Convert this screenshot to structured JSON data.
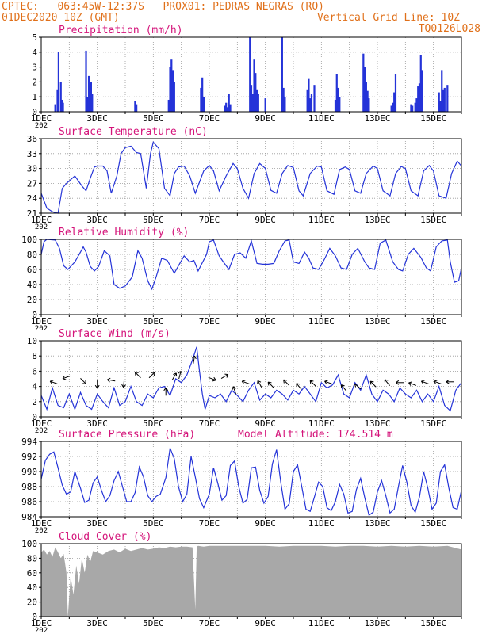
{
  "header": {
    "line1_left": "CPTEC:   063:45W-12:37S   PROX01: PEDRAS NEGRAS (RO)",
    "line2_left": "01DEC2020 10Z (GMT)",
    "line2_right": "Vertical Grid Line: 10Z",
    "line3_right": "TQ0126L028"
  },
  "colors": {
    "line": "#2433d8",
    "bars": "#2433d8",
    "cloud": "#a8a8a8",
    "header": "#e0701a",
    "title": "#d4147a"
  },
  "x_axis": {
    "tick_labels": [
      "1DEC",
      "3DEC",
      "5DEC",
      "7DEC",
      "9DEC",
      "11DEC",
      "13DEC",
      "15DEC"
    ],
    "year_fragment": "202",
    "range_days": [
      1,
      16
    ]
  },
  "chart_data": [
    {
      "type": "bar",
      "title": "Precipitation (mm/h)",
      "ylim": [
        0,
        5
      ],
      "yticks": [
        0,
        1,
        2,
        3,
        4,
        5
      ],
      "x": [
        1.5,
        1.58,
        1.62,
        1.7,
        1.75,
        1.78,
        2.6,
        2.65,
        2.7,
        2.75,
        2.78,
        2.82,
        4.35,
        4.4,
        5.55,
        5.6,
        5.65,
        5.7,
        5.75,
        6.7,
        6.75,
        6.8,
        7.55,
        7.6,
        7.65,
        7.7,
        7.75,
        8.45,
        8.5,
        8.55,
        8.6,
        8.65,
        8.7,
        8.75,
        9.0,
        9.6,
        9.65,
        9.7,
        10.5,
        10.55,
        10.6,
        10.65,
        10.75,
        11.5,
        11.55,
        11.6,
        11.65,
        12.5,
        12.55,
        12.6,
        12.65,
        12.7,
        13.5,
        13.55,
        13.6,
        13.65,
        14.2,
        14.25,
        14.35,
        14.4,
        14.45,
        14.5,
        14.55,
        14.6,
        15.2,
        15.25,
        15.3,
        15.35,
        15.4,
        15.5
      ],
      "values": [
        0.5,
        1.5,
        4.0,
        2.0,
        0.8,
        0.6,
        4.1,
        1.0,
        2.4,
        1.7,
        2.0,
        1.2,
        0.7,
        0.5,
        0.8,
        3.0,
        3.5,
        2.8,
        2.0,
        1.6,
        2.3,
        1.0,
        0.4,
        0.6,
        0.3,
        1.2,
        0.5,
        5.0,
        1.8,
        1.2,
        3.5,
        2.6,
        1.5,
        1.2,
        0.9,
        5.0,
        1.6,
        1.0,
        1.5,
        2.2,
        0.9,
        1.2,
        1.8,
        0.8,
        2.5,
        1.6,
        1.0,
        3.9,
        3.0,
        2.0,
        1.4,
        0.9,
        0.4,
        0.6,
        1.3,
        2.5,
        0.5,
        0.4,
        0.6,
        0.9,
        1.7,
        1.9,
        3.8,
        2.8,
        1.3,
        0.7,
        2.8,
        1.5,
        1.6,
        1.8
      ]
    },
    {
      "type": "line",
      "title": "Surface Temperature (nC)",
      "ylim": [
        21,
        36
      ],
      "yticks": [
        21,
        24,
        27,
        30,
        33,
        36
      ],
      "x": [
        1.0,
        1.2,
        1.4,
        1.5,
        1.6,
        1.75,
        1.9,
        2.2,
        2.45,
        2.6,
        2.75,
        2.9,
        3.0,
        3.2,
        3.35,
        3.5,
        3.7,
        3.85,
        4.0,
        4.2,
        4.4,
        4.55,
        4.75,
        4.9,
        5.0,
        5.2,
        5.4,
        5.6,
        5.75,
        5.9,
        6.1,
        6.3,
        6.5,
        6.8,
        7.0,
        7.15,
        7.35,
        7.6,
        7.85,
        8.0,
        8.2,
        8.4,
        8.6,
        8.8,
        9.0,
        9.2,
        9.4,
        9.6,
        9.8,
        10.0,
        10.2,
        10.35,
        10.6,
        10.85,
        11.0,
        11.2,
        11.45,
        11.65,
        11.85,
        12.0,
        12.2,
        12.4,
        12.6,
        12.85,
        13.0,
        13.2,
        13.45,
        13.65,
        13.85,
        14.0,
        14.2,
        14.45,
        14.65,
        14.85,
        15.0,
        15.2,
        15.45,
        15.65,
        15.85,
        16.0
      ],
      "values": [
        25,
        22,
        21.3,
        21.1,
        21.0,
        26,
        27,
        28.5,
        26.5,
        25.5,
        28,
        30.3,
        30.5,
        30.5,
        29.5,
        25,
        28.5,
        33,
        34.2,
        34.5,
        33.2,
        33,
        26,
        33,
        35.3,
        34,
        26,
        24.5,
        29,
        30.3,
        30.5,
        28.5,
        25,
        29.5,
        30.6,
        29.5,
        25.5,
        28.5,
        31,
        30,
        26,
        24,
        29,
        31,
        30,
        25.6,
        25,
        29,
        30.6,
        30.2,
        25.5,
        24.5,
        29,
        30.5,
        30.3,
        25.5,
        24.8,
        29.8,
        30.3,
        29.8,
        25.5,
        25,
        29,
        30.5,
        30,
        25.5,
        24.5,
        29,
        30.4,
        30,
        25.5,
        24.5,
        29.5,
        30.6,
        29.5,
        24.5,
        24,
        29,
        31.5,
        30.5
      ]
    },
    {
      "type": "line",
      "title": "Relative Humidity (%)",
      "ylim": [
        0,
        100
      ],
      "yticks": [
        0,
        20,
        40,
        60,
        80,
        100
      ],
      "x": [
        1.0,
        1.1,
        1.2,
        1.5,
        1.65,
        1.8,
        1.95,
        2.2,
        2.4,
        2.5,
        2.6,
        2.75,
        2.9,
        3.05,
        3.25,
        3.45,
        3.6,
        3.8,
        4.0,
        4.25,
        4.45,
        4.6,
        4.8,
        4.95,
        5.1,
        5.3,
        5.5,
        5.75,
        5.9,
        6.1,
        6.3,
        6.45,
        6.6,
        6.9,
        7.0,
        7.15,
        7.35,
        7.5,
        7.7,
        7.9,
        8.1,
        8.3,
        8.5,
        8.7,
        8.9,
        9.1,
        9.3,
        9.5,
        9.7,
        9.85,
        10.0,
        10.2,
        10.4,
        10.55,
        10.7,
        10.9,
        11.1,
        11.3,
        11.5,
        11.7,
        11.9,
        12.1,
        12.3,
        12.55,
        12.7,
        12.9,
        13.1,
        13.3,
        13.55,
        13.75,
        13.9,
        14.1,
        14.3,
        14.55,
        14.75,
        14.9,
        15.1,
        15.3,
        15.5,
        15.6,
        15.75,
        15.9,
        16.0
      ],
      "values": [
        80,
        97,
        100,
        99,
        88,
        65,
        60,
        70,
        83,
        90,
        83,
        64,
        58,
        64,
        85,
        78,
        40,
        35,
        38,
        50,
        85,
        75,
        45,
        34,
        50,
        75,
        72,
        55,
        65,
        78,
        70,
        72,
        58,
        80,
        97,
        99,
        78,
        70,
        60,
        80,
        82,
        75,
        98,
        68,
        67,
        67,
        68,
        85,
        98,
        99,
        70,
        68,
        83,
        75,
        62,
        60,
        73,
        88,
        78,
        62,
        60,
        80,
        88,
        70,
        62,
        60,
        95,
        99,
        70,
        60,
        58,
        80,
        88,
        76,
        62,
        58,
        90,
        98,
        99,
        70,
        43,
        45,
        62
      ]
    },
    {
      "type": "line",
      "title": "Surface Wind (m/s)",
      "ylim": [
        0,
        10
      ],
      "yticks": [
        0,
        2,
        4,
        6,
        8,
        10
      ],
      "x": [
        1.0,
        1.2,
        1.4,
        1.6,
        1.8,
        2.0,
        2.2,
        2.4,
        2.6,
        2.8,
        3.0,
        3.2,
        3.4,
        3.6,
        3.8,
        4.0,
        4.2,
        4.4,
        4.6,
        4.8,
        5.0,
        5.2,
        5.4,
        5.6,
        5.8,
        6.0,
        6.2,
        6.4,
        6.55,
        6.65,
        6.75,
        6.85,
        7.0,
        7.2,
        7.4,
        7.6,
        7.8,
        8.0,
        8.2,
        8.4,
        8.6,
        8.8,
        9.0,
        9.2,
        9.4,
        9.6,
        9.8,
        10.0,
        10.2,
        10.4,
        10.6,
        10.8,
        11.0,
        11.2,
        11.4,
        11.6,
        11.8,
        12.0,
        12.2,
        12.4,
        12.6,
        12.8,
        13.0,
        13.2,
        13.4,
        13.6,
        13.8,
        14.0,
        14.2,
        14.4,
        14.6,
        14.8,
        15.0,
        15.2,
        15.4,
        15.6,
        15.8,
        16.0
      ],
      "values": [
        2.8,
        1.0,
        3.8,
        1.5,
        1.2,
        3.0,
        1.0,
        3.2,
        1.5,
        1.0,
        3.0,
        2.0,
        1.2,
        3.8,
        1.5,
        2.0,
        4.0,
        2.0,
        1.5,
        3.0,
        2.5,
        3.8,
        4.0,
        2.8,
        5.0,
        4.5,
        5.5,
        7.5,
        9.2,
        6.0,
        3.0,
        1.0,
        2.8,
        2.5,
        3.0,
        2.0,
        3.5,
        2.8,
        2.0,
        3.5,
        4.5,
        2.2,
        3.0,
        2.5,
        3.5,
        3.0,
        2.2,
        3.5,
        3.0,
        4.0,
        3.0,
        2.0,
        4.5,
        3.8,
        4.2,
        5.5,
        3.0,
        2.5,
        4.5,
        3.5,
        5.5,
        3.0,
        2.0,
        3.5,
        3.0,
        2.0,
        3.8,
        3.0,
        2.5,
        3.5,
        2.0,
        3.0,
        2.0,
        4.0,
        1.5,
        0.8,
        3.5,
        4.5
      ],
      "arrows": {
        "x": [
          1.45,
          1.9,
          2.5,
          3.0,
          3.5,
          3.95,
          4.45,
          4.95,
          5.45,
          5.75,
          5.95,
          6.45,
          7.1,
          7.55,
          7.9,
          8.3,
          8.8,
          9.2,
          9.75,
          10.2,
          10.7,
          11.25,
          11.8,
          12.3,
          12.85,
          13.35,
          13.8,
          14.25,
          14.7,
          15.15,
          15.6
        ],
        "y": [
          4.5,
          5.2,
          4.7,
          4.3,
          4.8,
          4.4,
          5.5,
          5.5,
          3.3,
          5.3,
          5.5,
          7.5,
          5.0,
          5.3,
          3.5,
          4.5,
          4.3,
          4.2,
          4.5,
          4.0,
          4.4,
          4.5,
          3.8,
          4.0,
          4.3,
          4.5,
          4.5,
          4.3,
          4.5,
          4.5,
          4.6
        ],
        "deg": [
          200,
          160,
          45,
          90,
          190,
          95,
          225,
          315,
          270,
          300,
          285,
          280,
          20,
          330,
          250,
          200,
          240,
          225,
          225,
          230,
          225,
          200,
          230,
          220,
          225,
          230,
          180,
          200,
          200,
          200,
          180
        ]
      }
    },
    {
      "type": "line",
      "title": "Surface Pressure (hPa)",
      "annotation": "Model Altitude: 174.514 m",
      "ylim": [
        984,
        994
      ],
      "yticks": [
        984,
        986,
        988,
        990,
        992,
        994
      ],
      "x": [
        1.0,
        1.15,
        1.3,
        1.45,
        1.6,
        1.75,
        1.9,
        2.05,
        2.2,
        2.4,
        2.55,
        2.7,
        2.85,
        3.0,
        3.15,
        3.3,
        3.45,
        3.6,
        3.75,
        3.9,
        4.05,
        4.2,
        4.35,
        4.5,
        4.65,
        4.8,
        4.95,
        5.1,
        5.25,
        5.45,
        5.6,
        5.75,
        5.9,
        6.05,
        6.2,
        6.35,
        6.5,
        6.65,
        6.8,
        7.0,
        7.15,
        7.3,
        7.45,
        7.6,
        7.75,
        7.9,
        8.05,
        8.2,
        8.35,
        8.5,
        8.65,
        8.8,
        8.95,
        9.1,
        9.25,
        9.4,
        9.55,
        9.7,
        9.85,
        10.0,
        10.15,
        10.3,
        10.45,
        10.6,
        10.75,
        10.9,
        11.05,
        11.2,
        11.35,
        11.5,
        11.65,
        11.8,
        11.95,
        12.1,
        12.25,
        12.4,
        12.55,
        12.7,
        12.85,
        13.0,
        13.15,
        13.3,
        13.45,
        13.6,
        13.75,
        13.9,
        14.05,
        14.2,
        14.35,
        14.5,
        14.65,
        14.8,
        14.95,
        15.1,
        15.25,
        15.4,
        15.55,
        15.7,
        15.85,
        16.0
      ],
      "values": [
        989.0,
        991.5,
        992.3,
        992.6,
        990.5,
        988.2,
        987.0,
        987.3,
        990.0,
        987.8,
        985.9,
        986.2,
        988.5,
        989.3,
        987.5,
        986.0,
        986.8,
        988.8,
        990.0,
        988.0,
        986.0,
        986.0,
        987.2,
        990.6,
        989.3,
        986.8,
        986.0,
        986.7,
        987.0,
        989.2,
        993.1,
        991.7,
        988.0,
        986.0,
        987.0,
        992.0,
        989.3,
        986.4,
        985.2,
        987.0,
        990.5,
        988.5,
        986.2,
        986.8,
        990.8,
        991.4,
        988.0,
        985.8,
        986.3,
        990.5,
        990.6,
        987.5,
        985.8,
        986.7,
        991.0,
        992.9,
        988.6,
        985.0,
        985.7,
        990.0,
        990.9,
        988.0,
        985.0,
        984.7,
        986.6,
        988.6,
        988.0,
        985.2,
        984.8,
        986.0,
        988.3,
        987.0,
        984.5,
        984.7,
        987.6,
        989.1,
        986.5,
        984.2,
        984.6,
        987.3,
        988.8,
        986.8,
        984.5,
        985.0,
        988.0,
        990.8,
        988.6,
        985.5,
        984.6,
        986.6,
        990.0,
        987.8,
        985.0,
        985.8,
        990.0,
        990.9,
        987.8,
        985.2,
        985.0,
        987.5
      ]
    },
    {
      "type": "area",
      "title": "Cloud Cover (%)",
      "ylim": [
        0,
        100
      ],
      "yticks": [
        0,
        20,
        40,
        60,
        80,
        100
      ],
      "x": [
        1.0,
        1.1,
        1.2,
        1.3,
        1.4,
        1.5,
        1.6,
        1.7,
        1.8,
        1.9,
        1.95,
        2.05,
        2.15,
        2.25,
        2.35,
        2.45,
        2.55,
        2.65,
        2.75,
        2.85,
        3.0,
        3.2,
        3.4,
        3.6,
        3.8,
        4.0,
        4.2,
        4.4,
        4.6,
        4.8,
        5.0,
        5.2,
        5.4,
        5.6,
        5.8,
        6.0,
        6.2,
        6.4,
        6.5,
        6.55,
        6.6,
        6.8,
        7.0,
        7.5,
        8.0,
        8.5,
        9.0,
        9.5,
        10.0,
        10.5,
        11.0,
        11.5,
        12.0,
        12.5,
        13.0,
        13.5,
        14.0,
        14.5,
        15.0,
        15.5,
        16.0
      ],
      "values": [
        88,
        92,
        85,
        90,
        82,
        95,
        88,
        80,
        86,
        60,
        0,
        55,
        30,
        70,
        45,
        80,
        60,
        85,
        75,
        90,
        88,
        85,
        90,
        92,
        88,
        93,
        90,
        92,
        94,
        92,
        93,
        95,
        94,
        96,
        95,
        96,
        96,
        95,
        10,
        96,
        97,
        96,
        97,
        97,
        97,
        97,
        97,
        96,
        97,
        97,
        97,
        96,
        97,
        97,
        96,
        97,
        96,
        97,
        96,
        97,
        92
      ]
    }
  ]
}
